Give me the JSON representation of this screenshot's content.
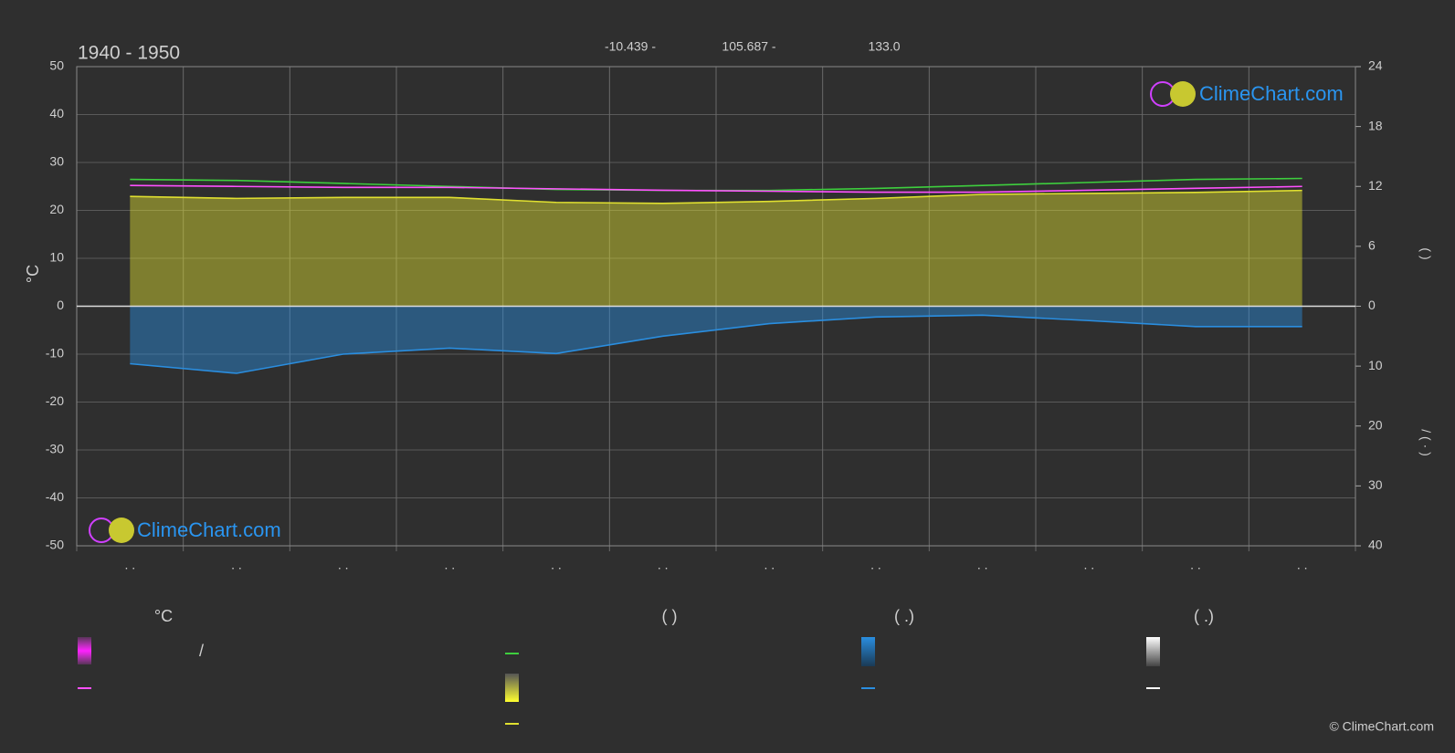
{
  "header": {
    "title": "1940 - 1950",
    "coords": [
      "-10.439 -",
      "105.687 -",
      "133.0"
    ]
  },
  "chart_data": {
    "type": "line",
    "y_label": "°C",
    "y2_label": "(        )",
    "y3_label": "/        (  ·  )",
    "watermark": "ClimeChart.com",
    "categories": [
      ". .",
      ". .",
      ". .",
      ". .",
      ". .",
      ". .",
      ". .",
      ". .",
      ". .",
      ". .",
      ". .",
      ". ."
    ],
    "ylim": [
      -50,
      50
    ],
    "yticks": [
      -50,
      -40,
      -30,
      -20,
      -10,
      0,
      10,
      20,
      30,
      40,
      50
    ],
    "y2lim": [
      0,
      24
    ],
    "y2ticks": [
      0,
      6,
      12,
      18,
      24
    ],
    "y3lim": [
      0,
      40
    ],
    "y3ticks": [
      0,
      10,
      20,
      30,
      40
    ],
    "grid": true,
    "series": [
      {
        "color": "#3ecf3e",
        "axis": "y2",
        "values": [
          12.7,
          12.6,
          12.3,
          12.0,
          11.7,
          11.6,
          11.6,
          11.8,
          12.1,
          12.4,
          12.7,
          12.8
        ]
      },
      {
        "color": "#e0e030",
        "axis": "y2",
        "fill": true,
        "values": [
          11.0,
          10.8,
          10.9,
          10.9,
          10.4,
          10.3,
          10.5,
          10.8,
          11.2,
          11.3,
          11.4,
          11.6
        ]
      },
      {
        "color": "#ff50ff",
        "values": [
          25.2,
          25.0,
          24.8,
          24.8,
          24.5,
          24.2,
          24.0,
          23.8,
          23.8,
          24.2,
          24.6,
          25.0
        ]
      },
      {
        "color": "#2a8ee0",
        "axis": "y3",
        "fill": true,
        "values": [
          9.6,
          11.2,
          8.0,
          7.0,
          7.9,
          5.0,
          2.9,
          1.8,
          1.5,
          2.4,
          3.4,
          3.4
        ]
      }
    ]
  },
  "legend": {
    "headers": [
      "°C",
      "(          )",
      "(    .)",
      "(    .)"
    ],
    "slash": "/"
  },
  "footer": "© ClimeChart.com"
}
